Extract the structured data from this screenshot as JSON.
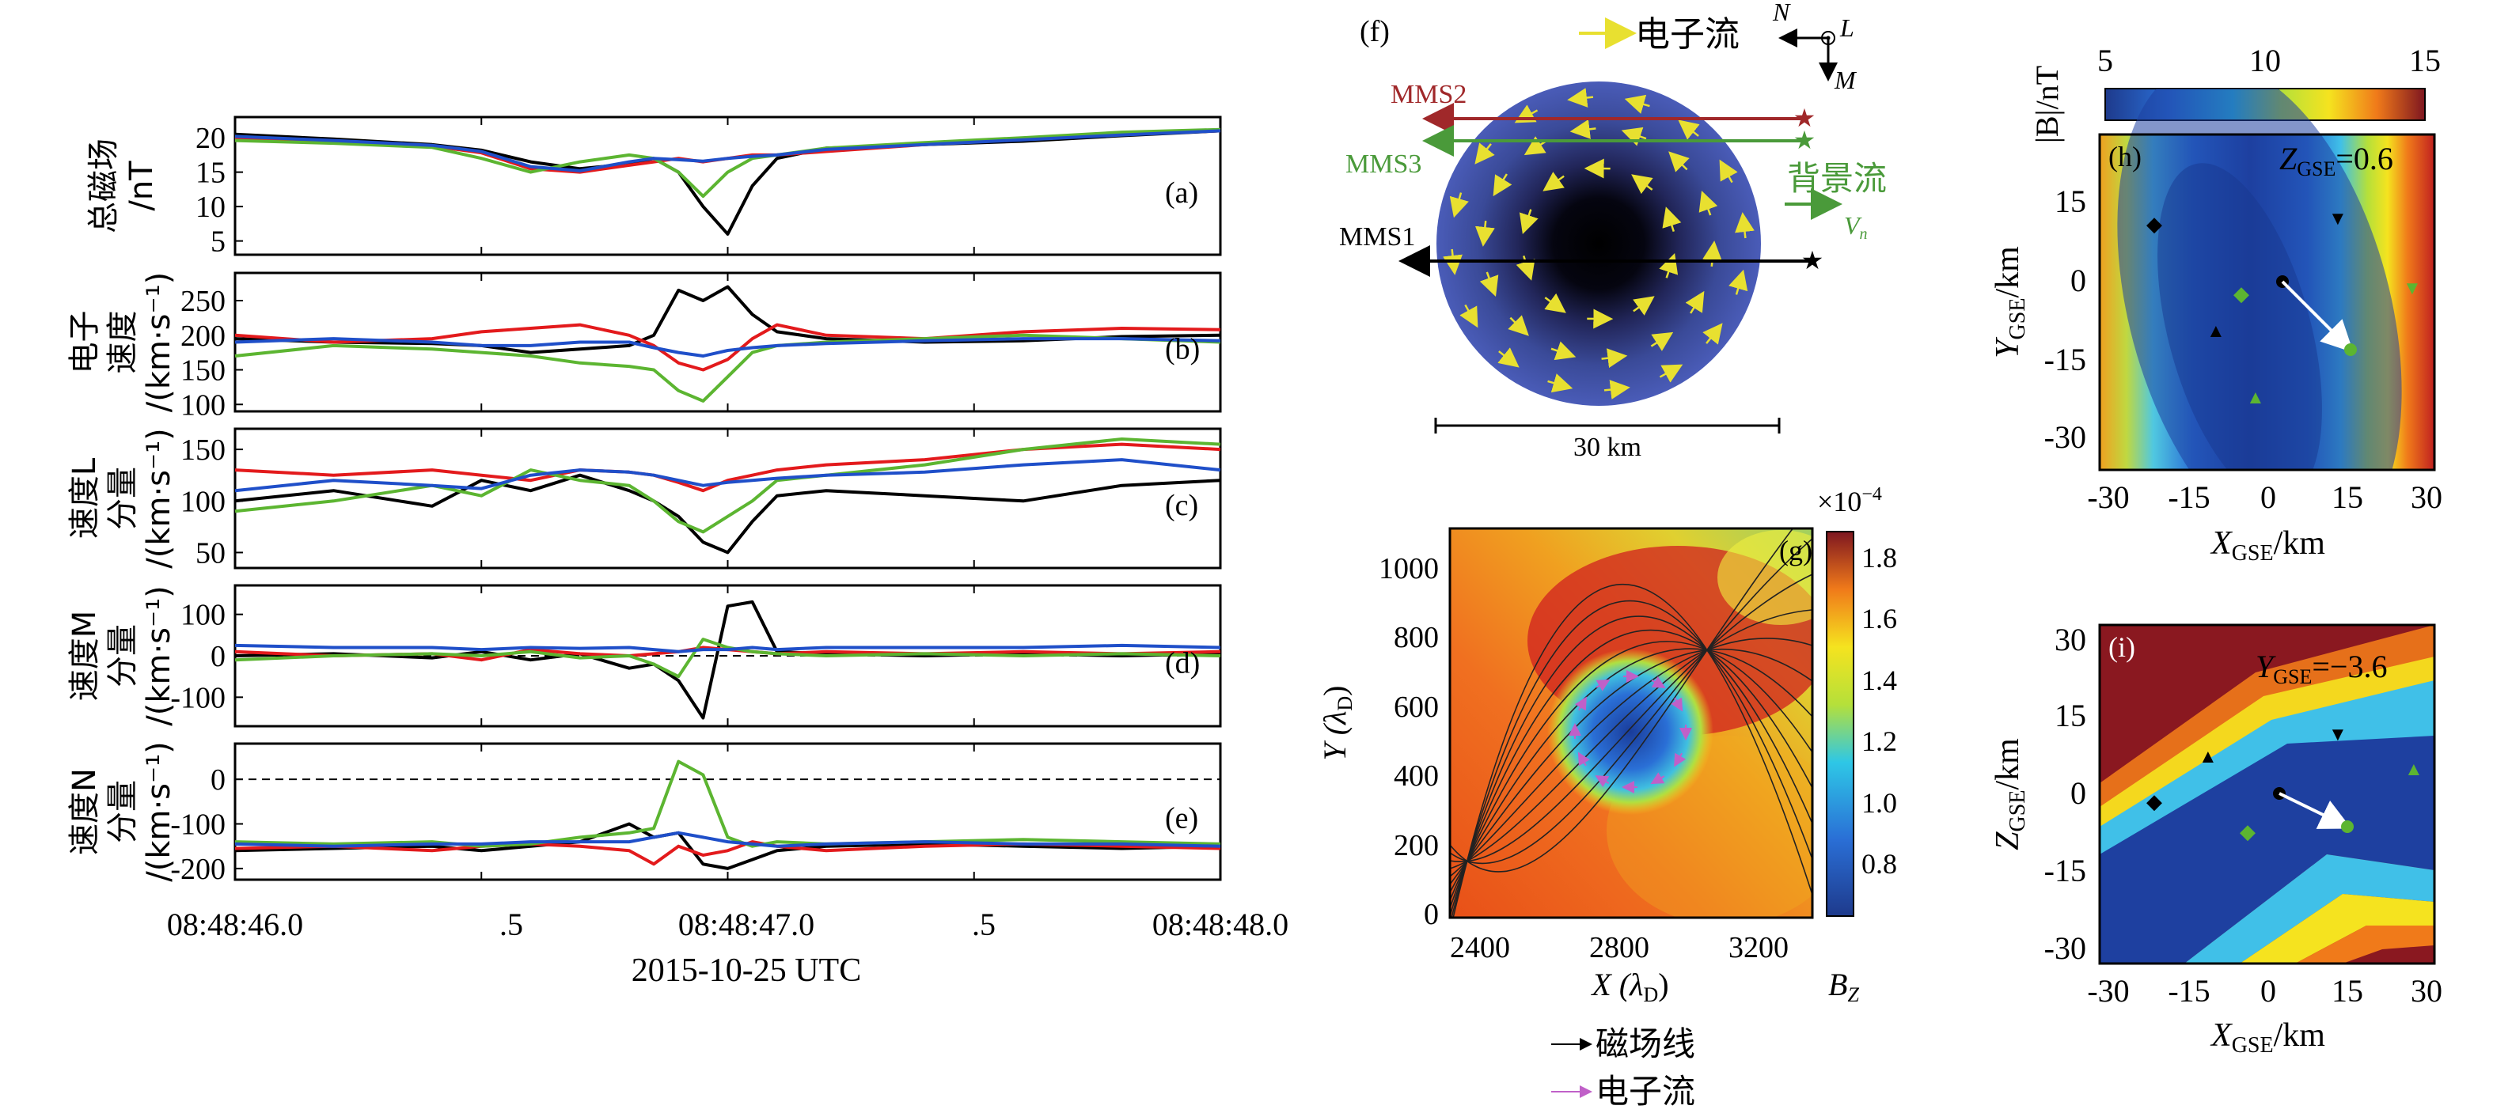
{
  "colors": {
    "mms1": "#000000",
    "mms2": "#e31a1c",
    "mms3": "#5cb531",
    "mms4": "#1f4fc9",
    "arrow_yellow": "#ffff33",
    "flow_green": "#4a9a3a",
    "mms2_dark": "#a0282a",
    "magenta": "#c060c8"
  },
  "left": {
    "xticks": [
      "08:48:46.0",
      ".5",
      "08:48:47.0",
      ".5",
      "08:48:48.0"
    ],
    "xlabel": "2015-10-25 UTC"
  },
  "chart_data": [
    {
      "id": "a",
      "type": "line",
      "panel_label": "(a)",
      "ylabel_lines": [
        "总磁场",
        "/nT"
      ],
      "yticks": [
        "5",
        "10",
        "15",
        "20"
      ],
      "ylim": [
        3,
        23
      ],
      "x": [
        0.0,
        0.2,
        0.4,
        0.5,
        0.6,
        0.7,
        0.8,
        0.85,
        0.9,
        0.95,
        1.0,
        1.05,
        1.1,
        1.2,
        1.4,
        1.6,
        1.8,
        2.0
      ],
      "series": [
        {
          "color_key": "mms1",
          "values": [
            20.5,
            19.8,
            19.0,
            18.2,
            16.5,
            15.5,
            16.2,
            17.0,
            15.0,
            10.0,
            6.0,
            13.0,
            17.0,
            18.5,
            19.0,
            19.5,
            20.3,
            21.0
          ]
        },
        {
          "color_key": "mms2",
          "values": [
            20.0,
            19.5,
            18.8,
            17.8,
            15.5,
            15.0,
            16.0,
            16.5,
            17.0,
            16.5,
            17.0,
            17.5,
            17.5,
            18.0,
            19.0,
            19.8,
            20.5,
            21.0
          ]
        },
        {
          "color_key": "mms3",
          "values": [
            19.6,
            19.2,
            18.6,
            17.0,
            15.0,
            16.5,
            17.5,
            17.0,
            15.0,
            11.5,
            15.0,
            17.0,
            17.5,
            18.5,
            19.3,
            20.0,
            20.8,
            21.2
          ]
        },
        {
          "color_key": "mms4",
          "values": [
            20.2,
            19.6,
            18.9,
            18.0,
            15.8,
            15.2,
            16.5,
            17.0,
            16.8,
            16.6,
            17.0,
            17.3,
            17.5,
            18.3,
            19.0,
            19.7,
            20.4,
            21.0
          ]
        }
      ]
    },
    {
      "id": "b",
      "type": "line",
      "panel_label": "(b)",
      "ylabel_lines": [
        "电子",
        "速度",
        "/(km·s⁻¹)"
      ],
      "yticks": [
        "100",
        "150",
        "200",
        "250"
      ],
      "ylim": [
        90,
        290
      ],
      "x": [
        0.0,
        0.2,
        0.4,
        0.5,
        0.6,
        0.7,
        0.8,
        0.85,
        0.9,
        0.95,
        1.0,
        1.05,
        1.1,
        1.2,
        1.4,
        1.6,
        1.8,
        2.0
      ],
      "series": [
        {
          "color_key": "mms1",
          "values": [
            195,
            190,
            188,
            185,
            175,
            180,
            185,
            200,
            265,
            250,
            270,
            230,
            205,
            195,
            190,
            192,
            198,
            200
          ]
        },
        {
          "color_key": "mms2",
          "values": [
            200,
            190,
            195,
            205,
            210,
            215,
            200,
            185,
            160,
            150,
            165,
            195,
            215,
            200,
            195,
            205,
            210,
            208
          ]
        },
        {
          "color_key": "mms3",
          "values": [
            170,
            185,
            180,
            175,
            170,
            160,
            155,
            150,
            120,
            105,
            140,
            175,
            185,
            190,
            195,
            200,
            195,
            190
          ]
        },
        {
          "color_key": "mms4",
          "values": [
            190,
            195,
            190,
            185,
            185,
            190,
            190,
            182,
            175,
            170,
            178,
            182,
            185,
            188,
            192,
            195,
            195,
            192
          ]
        }
      ]
    },
    {
      "id": "c",
      "type": "line",
      "panel_label": "(c)",
      "ylabel_lines": [
        "速度L",
        "分量",
        "/(km·s⁻¹)"
      ],
      "yticks": [
        "50",
        "100",
        "150"
      ],
      "ylim": [
        35,
        170
      ],
      "x": [
        0.0,
        0.2,
        0.4,
        0.5,
        0.6,
        0.7,
        0.8,
        0.85,
        0.9,
        0.95,
        1.0,
        1.05,
        1.1,
        1.2,
        1.4,
        1.6,
        1.8,
        2.0
      ],
      "series": [
        {
          "color_key": "mms1",
          "values": [
            100,
            110,
            95,
            120,
            110,
            125,
            110,
            100,
            85,
            60,
            50,
            80,
            105,
            110,
            105,
            100,
            115,
            120
          ]
        },
        {
          "color_key": "mms2",
          "values": [
            130,
            125,
            130,
            125,
            120,
            130,
            128,
            125,
            118,
            110,
            120,
            125,
            130,
            135,
            140,
            150,
            155,
            150
          ]
        },
        {
          "color_key": "mms3",
          "values": [
            90,
            100,
            115,
            105,
            130,
            120,
            115,
            100,
            80,
            70,
            85,
            100,
            120,
            125,
            135,
            150,
            160,
            155
          ]
        },
        {
          "color_key": "mms4",
          "values": [
            110,
            120,
            115,
            112,
            125,
            130,
            128,
            125,
            120,
            115,
            118,
            120,
            122,
            125,
            128,
            135,
            140,
            130
          ]
        }
      ]
    },
    {
      "id": "d",
      "type": "line",
      "panel_label": "(d)",
      "ylabel_lines": [
        "速度M",
        "分量",
        "/(km·s⁻¹)"
      ],
      "yticks": [
        "-100",
        "0",
        "100"
      ],
      "ylim": [
        -170,
        170
      ],
      "x": [
        0.0,
        0.2,
        0.4,
        0.5,
        0.6,
        0.7,
        0.8,
        0.85,
        0.9,
        0.95,
        1.0,
        1.05,
        1.1,
        1.2,
        1.4,
        1.6,
        1.8,
        2.0
      ],
      "series": [
        {
          "color_key": "mms1",
          "values": [
            0,
            5,
            -5,
            10,
            -10,
            5,
            -30,
            -20,
            -60,
            -150,
            120,
            130,
            10,
            5,
            0,
            5,
            0,
            5
          ]
        },
        {
          "color_key": "mms2",
          "values": [
            10,
            0,
            5,
            -10,
            15,
            5,
            0,
            5,
            10,
            20,
            15,
            10,
            5,
            10,
            5,
            10,
            5,
            10
          ]
        },
        {
          "color_key": "mms3",
          "values": [
            -10,
            0,
            5,
            0,
            10,
            -5,
            0,
            -20,
            -50,
            40,
            20,
            10,
            5,
            0,
            5,
            0,
            5,
            0
          ]
        },
        {
          "color_key": "mms4",
          "values": [
            25,
            20,
            20,
            15,
            20,
            18,
            20,
            15,
            10,
            15,
            15,
            20,
            15,
            20,
            20,
            20,
            25,
            20
          ]
        }
      ]
    },
    {
      "id": "e",
      "type": "line",
      "panel_label": "(e)",
      "ylabel_lines": [
        "速度N",
        "分量",
        "/(km·s⁻¹)"
      ],
      "yticks": [
        "-200",
        "-100",
        "0"
      ],
      "ylim": [
        -225,
        80
      ],
      "x": [
        0.0,
        0.2,
        0.4,
        0.5,
        0.6,
        0.7,
        0.8,
        0.85,
        0.9,
        0.95,
        1.0,
        1.05,
        1.1,
        1.2,
        1.4,
        1.6,
        1.8,
        2.0
      ],
      "series": [
        {
          "color_key": "mms1",
          "values": [
            -160,
            -155,
            -150,
            -160,
            -150,
            -140,
            -100,
            -130,
            -120,
            -190,
            -200,
            -180,
            -160,
            -150,
            -145,
            -150,
            -155,
            -150
          ]
        },
        {
          "color_key": "mms2",
          "values": [
            -155,
            -150,
            -160,
            -150,
            -145,
            -150,
            -160,
            -190,
            -150,
            -170,
            -160,
            -140,
            -150,
            -160,
            -150,
            -145,
            -150,
            -155
          ]
        },
        {
          "color_key": "mms3",
          "values": [
            -140,
            -145,
            -140,
            -150,
            -145,
            -130,
            -120,
            -110,
            40,
            10,
            -130,
            -150,
            -140,
            -145,
            -140,
            -135,
            -140,
            -145
          ]
        },
        {
          "color_key": "mms4",
          "values": [
            -145,
            -150,
            -145,
            -145,
            -140,
            -140,
            -140,
            -130,
            -120,
            -130,
            -140,
            -145,
            -150,
            -145,
            -140,
            -145,
            -145,
            -150
          ]
        }
      ]
    }
  ],
  "panel_f": {
    "label": "(f)",
    "legend_flow": "电子流",
    "axis_n": "N",
    "axis_l": "L",
    "axis_m": "M",
    "mms2": "MMS2",
    "mms3": "MMS3",
    "mms1": "MMS1",
    "background_flow": "背景流",
    "vn": "V",
    "vn_sub": "n",
    "scale": "30 km"
  },
  "panel_g": {
    "label": "(g)",
    "multiplier": "×10",
    "multiplier_exp": "−4",
    "xlabel": "X (λ",
    "xlabel_sub": "D",
    "ylabel": "Y (λ",
    "ylabel_sub": "D",
    "close_paren": ")",
    "xticks": [
      "2400",
      "2800",
      "3200"
    ],
    "yticks": [
      "0",
      "200",
      "400",
      "600",
      "800",
      "1000"
    ],
    "cbar_ticks": [
      "0.8",
      "1.0",
      "1.2",
      "1.4",
      "1.6",
      "1.8"
    ],
    "cbar_label": "B",
    "cbar_label_sub": "Z",
    "legend_field": "磁场线",
    "legend_flow": "电子流"
  },
  "panel_h": {
    "label": "(h)",
    "annot": "Z",
    "annot_sub": "GSE",
    "annot_val": "=0.6",
    "cbar_title": "|B|/nT",
    "cbar_ticks": [
      "5",
      "10",
      "15"
    ],
    "xticks": [
      "-30",
      "-15",
      "0",
      "15",
      "30"
    ],
    "yticks": [
      "15",
      "0",
      "-15",
      "-30"
    ],
    "xlabel": "X",
    "xlabel_sub": "GSE",
    "xlabel_unit": "/km",
    "ylabel": "Y",
    "ylabel_sub": "GSE",
    "ylabel_unit": "/km"
  },
  "panel_i": {
    "label": "(i)",
    "annot": "Y",
    "annot_sub": "GSE",
    "annot_val": "=−3.6",
    "xticks": [
      "-30",
      "-15",
      "0",
      "15",
      "30"
    ],
    "yticks": [
      "30",
      "15",
      "0",
      "-15",
      "-30"
    ],
    "xlabel": "X",
    "xlabel_sub": "GSE",
    "xlabel_unit": "/km",
    "ylabel": "Z",
    "ylabel_sub": "GSE",
    "ylabel_unit": "/km"
  }
}
